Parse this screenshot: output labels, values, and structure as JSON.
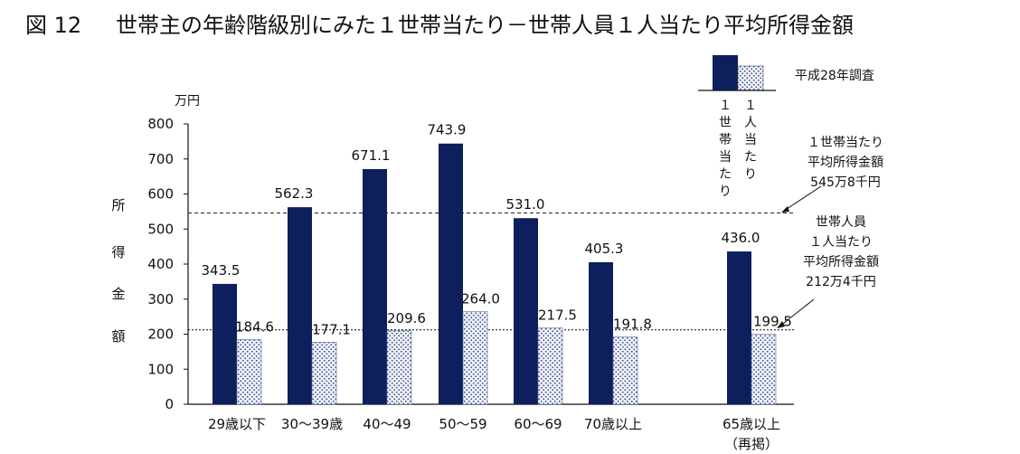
{
  "chart_data": {
    "type": "bar",
    "title_prefix": "図 12",
    "title": "世帯主の年齢階級別にみた１世帯当たり－世帯人員１人当たり平均所得金額",
    "unit_label": "万円",
    "ylabel_chars": [
      "所",
      "得",
      "金",
      "額"
    ],
    "ylim": [
      0,
      800
    ],
    "yticks": [
      0,
      100,
      200,
      300,
      400,
      500,
      600,
      700,
      800
    ],
    "categories": [
      "29歳以下",
      "30～39歳",
      "40～49",
      "50～59",
      "60～69",
      "70歳以上",
      "65歳以上"
    ],
    "category_sublabels": [
      "",
      "",
      "",
      "",
      "",
      "",
      "（再掲）"
    ],
    "series": [
      {
        "name": "１世帯当たり",
        "color": "#0d1f5c",
        "values": [
          343.5,
          562.3,
          671.1,
          743.9,
          531.0,
          405.3,
          436.0
        ],
        "labels": [
          "343.5",
          "562.3",
          "671.1",
          "743.9",
          "531.0",
          "405.3",
          "436.0"
        ]
      },
      {
        "name": "１人当たり",
        "color": "#dfe6f3",
        "values": [
          184.6,
          177.1,
          209.6,
          264.0,
          217.5,
          191.8,
          199.5
        ],
        "labels": [
          "184.6",
          "177.1",
          "209.6",
          "264.0",
          "217.5",
          "191.8",
          "199.5"
        ]
      }
    ],
    "legend_title": "平成28年調査",
    "legend_series_chars": [
      [
        "１",
        "世",
        "帯",
        "当",
        "た",
        "り"
      ],
      [
        "１",
        "人",
        "当",
        "た",
        "り"
      ]
    ],
    "reference_lines": [
      {
        "value": 545.8,
        "style": "dashed",
        "label_lines": [
          "１世帯当たり",
          "平均所得金額",
          "545万8千円"
        ]
      },
      {
        "value": 212.4,
        "style": "dotted",
        "label_lines": [
          "世帯人員",
          "１人当たり",
          "平均所得金額",
          "212万4千円"
        ]
      }
    ],
    "grid": false
  }
}
